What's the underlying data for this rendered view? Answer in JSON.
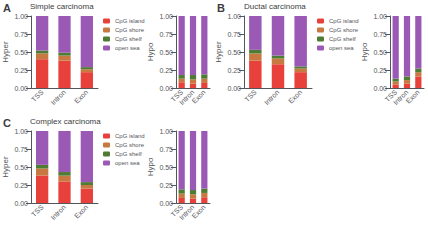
{
  "chart_data": [
    {
      "type": "bar",
      "stacked": true,
      "title": "Simple carcinoma",
      "annotations": [
        "A"
      ],
      "ylabel": "Hyper",
      "categories": [
        "TSS",
        "Intron",
        "Exon"
      ],
      "series": [
        {
          "name": "CpG island",
          "color": "#e8413c",
          "values": [
            0.4,
            0.38,
            0.22
          ]
        },
        {
          "name": "CpG shore",
          "color": "#c87941",
          "values": [
            0.08,
            0.07,
            0.04
          ]
        },
        {
          "name": "CpG shelf",
          "color": "#4e7c34",
          "values": [
            0.04,
            0.04,
            0.03
          ]
        },
        {
          "name": "open sea",
          "color": "#9b59b6",
          "values": [
            0.48,
            0.51,
            0.71
          ]
        }
      ],
      "ylim": [
        0,
        1
      ],
      "yticks": [
        {
          "value": 0,
          "label": "0.00"
        },
        {
          "value": 0.25,
          "label": "0.25"
        },
        {
          "value": 0.5,
          "label": "0.50"
        },
        {
          "value": 0.75,
          "label": "0.75"
        },
        {
          "value": 1.0,
          "label": "1.00"
        }
      ],
      "grid": false,
      "legend": "upper right"
    },
    {
      "type": "bar",
      "stacked": true,
      "ylabel": "Hypo",
      "categories": [
        "TSS",
        "Intron",
        "Exon"
      ],
      "series": [
        {
          "color": "#e8413c",
          "values": [
            0.08,
            0.06,
            0.07
          ]
        },
        {
          "color": "#c87941",
          "values": [
            0.05,
            0.06,
            0.06
          ]
        },
        {
          "color": "#4e7c34",
          "values": [
            0.05,
            0.06,
            0.06
          ]
        },
        {
          "color": "#9b59b6",
          "values": [
            0.82,
            0.82,
            0.81
          ]
        }
      ],
      "ylim": [
        0,
        1
      ],
      "yticks": [
        {
          "value": 0,
          "label": "0.00"
        },
        {
          "value": 0.25,
          "label": "0.25"
        },
        {
          "value": 0.5,
          "label": "0.50"
        },
        {
          "value": 0.75,
          "label": "0.75"
        },
        {
          "value": 1.0,
          "label": "1.00"
        }
      ],
      "grid": false
    },
    {
      "type": "bar",
      "stacked": true,
      "title": "Ductal carcinoma",
      "annotations": [
        "B"
      ],
      "ylabel": "Hyper",
      "categories": [
        "TSS",
        "Intron",
        "Exon"
      ],
      "series": [
        {
          "name": "CpG island",
          "color": "#e8413c",
          "values": [
            0.38,
            0.33,
            0.22
          ]
        },
        {
          "name": "CpG shore",
          "color": "#c87941",
          "values": [
            0.1,
            0.08,
            0.05
          ]
        },
        {
          "name": "CpG shelf",
          "color": "#4e7c34",
          "values": [
            0.05,
            0.04,
            0.03
          ]
        },
        {
          "name": "open sea",
          "color": "#9b59b6",
          "values": [
            0.47,
            0.55,
            0.7
          ]
        }
      ],
      "ylim": [
        0,
        1
      ],
      "yticks": [
        {
          "value": 0,
          "label": "0.00"
        },
        {
          "value": 0.25,
          "label": "0.25"
        },
        {
          "value": 0.5,
          "label": "0.50"
        },
        {
          "value": 0.75,
          "label": "0.75"
        },
        {
          "value": 1.0,
          "label": "1.00"
        }
      ],
      "grid": false,
      "legend": "upper right"
    },
    {
      "type": "bar",
      "stacked": true,
      "ylabel": "Hypo",
      "categories": [
        "TSS",
        "Intron",
        "Exon"
      ],
      "series": [
        {
          "color": "#e8413c",
          "values": [
            0.05,
            0.06,
            0.16
          ]
        },
        {
          "color": "#c87941",
          "values": [
            0.04,
            0.05,
            0.06
          ]
        },
        {
          "color": "#4e7c34",
          "values": [
            0.04,
            0.05,
            0.05
          ]
        },
        {
          "color": "#9b59b6",
          "values": [
            0.87,
            0.84,
            0.73
          ]
        }
      ],
      "ylim": [
        0,
        1
      ],
      "yticks": [
        {
          "value": 0,
          "label": "0.00"
        },
        {
          "value": 0.25,
          "label": "0.25"
        },
        {
          "value": 0.5,
          "label": "0.50"
        },
        {
          "value": 0.75,
          "label": "0.75"
        },
        {
          "value": 1.0,
          "label": "1.00"
        }
      ],
      "grid": false
    },
    {
      "type": "bar",
      "stacked": true,
      "title": "Complex carcinoma",
      "annotations": [
        "C"
      ],
      "ylabel": "Hyper",
      "categories": [
        "TSS",
        "Intron",
        "Exon"
      ],
      "series": [
        {
          "name": "CpG island",
          "color": "#e8413c",
          "values": [
            0.38,
            0.3,
            0.2
          ]
        },
        {
          "name": "CpG shore",
          "color": "#c87941",
          "values": [
            0.1,
            0.08,
            0.05
          ]
        },
        {
          "name": "CpG shelf",
          "color": "#4e7c34",
          "values": [
            0.05,
            0.05,
            0.04
          ]
        },
        {
          "name": "open sea",
          "color": "#9b59b6",
          "values": [
            0.47,
            0.57,
            0.71
          ]
        }
      ],
      "ylim": [
        0,
        1
      ],
      "yticks": [
        {
          "value": 0,
          "label": "0.00"
        },
        {
          "value": 0.25,
          "label": "0.25"
        },
        {
          "value": 0.5,
          "label": "0.50"
        },
        {
          "value": 0.75,
          "label": "0.75"
        },
        {
          "value": 1.0,
          "label": "1.00"
        }
      ],
      "grid": false,
      "legend": "upper right"
    },
    {
      "type": "bar",
      "stacked": true,
      "ylabel": "Hypo",
      "categories": [
        "TSS",
        "Intron",
        "Exon"
      ],
      "series": [
        {
          "color": "#e8413c",
          "values": [
            0.07,
            0.06,
            0.08
          ]
        },
        {
          "color": "#c87941",
          "values": [
            0.06,
            0.06,
            0.06
          ]
        },
        {
          "color": "#4e7c34",
          "values": [
            0.06,
            0.06,
            0.06
          ]
        },
        {
          "color": "#9b59b6",
          "values": [
            0.81,
            0.82,
            0.8
          ]
        }
      ],
      "ylim": [
        0,
        1
      ],
      "yticks": [
        {
          "value": 0,
          "label": "0.00"
        },
        {
          "value": 0.25,
          "label": "0.25"
        },
        {
          "value": 0.5,
          "label": "0.50"
        },
        {
          "value": 0.75,
          "label": "0.75"
        },
        {
          "value": 1.0,
          "label": "1.00"
        }
      ],
      "grid": false
    }
  ]
}
